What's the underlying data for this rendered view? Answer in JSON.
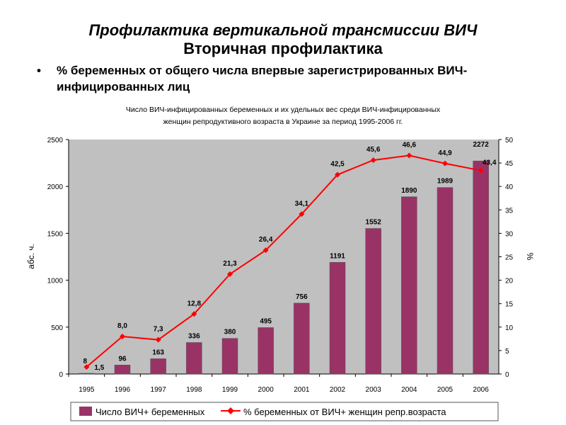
{
  "slide": {
    "title": "Профилактика вертикальной трансмиссии ВИЧ",
    "subtitle": "Вторичная  профилактика",
    "bullet": "% беременных от общего числа впервые зарегистрированных ВИЧ-инфицированных лиц"
  },
  "chart_data": {
    "type": "bar",
    "title_line1": "Число ВИЧ-инфицированных беременных и их удельных вес среди ВИЧ-инфицированных",
    "title_line2": "женщин репродуктивного возраста в Украине за период 1995-2006 гг.",
    "categories": [
      "1995",
      "1996",
      "1997",
      "1998",
      "1999",
      "2000",
      "2001",
      "2002",
      "2003",
      "2004",
      "2005",
      "2006"
    ],
    "series": [
      {
        "name": "Число ВИЧ+ беременных",
        "type": "bar",
        "axis": "left",
        "color": "#993366",
        "values": [
          8,
          96,
          163,
          336,
          380,
          495,
          756,
          1191,
          1552,
          1890,
          1989,
          2272
        ],
        "labels": [
          "8",
          "96",
          "163",
          "336",
          "380",
          "495",
          "756",
          "1191",
          "1552",
          "1890",
          "1989",
          "2272"
        ]
      },
      {
        "name": "% беременных от ВИЧ+ женщин репр.возраста",
        "type": "line",
        "axis": "right",
        "color": "#ff0000",
        "values": [
          1.5,
          8.0,
          7.3,
          12.8,
          21.3,
          26.4,
          34.1,
          42.5,
          45.6,
          46.6,
          44.9,
          43.4
        ],
        "labels": [
          "1,5",
          "8,0",
          "7,3",
          "12,8",
          "21,3",
          "26,4",
          "34,1",
          "42,5",
          "45,6",
          "46,6",
          "44,9",
          "43,4"
        ]
      }
    ],
    "ylabel": "абс. ч.",
    "y2label": "%",
    "ylim": [
      0,
      2500
    ],
    "y2lim": [
      0,
      50
    ],
    "yticks": [
      "0",
      "500",
      "1000",
      "1500",
      "2000",
      "2500"
    ],
    "y2ticks": [
      "0",
      "5",
      "10",
      "15",
      "20",
      "25",
      "30",
      "35",
      "40",
      "45",
      "50"
    ],
    "legend_position": "bottom",
    "background": "#c0c0c0"
  }
}
